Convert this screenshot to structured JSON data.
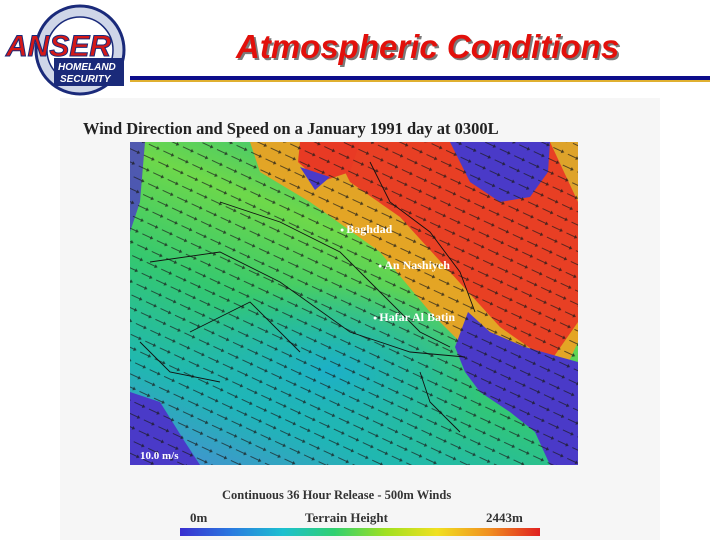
{
  "slide": {
    "title": "Atmospheric Conditions"
  },
  "logo": {
    "brand": "ANSER",
    "badge": "HOMELAND SECURITY"
  },
  "figure": {
    "title": "Wind Direction and Speed on a January 1991 day at 0300L",
    "cities": [
      "Baghdad",
      "An Nashiyeh",
      "Hafar Al Batin"
    ],
    "scale_label": "10.0 m/s",
    "caption": "Continuous 36 Hour Release - 500m Winds",
    "legend": {
      "min": "0m",
      "title": "Terrain Height",
      "max": "2443m"
    }
  },
  "colors": {
    "title_red": "#e2100b",
    "rule_navy": "#0d0d8a",
    "water": "#4a3ac8",
    "high_speed": "#e83a24"
  }
}
